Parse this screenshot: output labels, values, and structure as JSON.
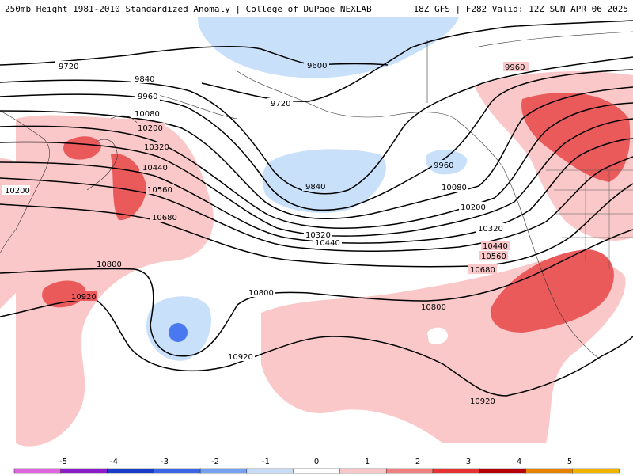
{
  "header": {
    "title": "250mb Height 1981-2010 Standardized Anomaly | College of DuPage NEXLAB",
    "run_info": "18Z GFS | F282 Valid: 12Z SUN APR 06 2025"
  },
  "contours": {
    "labels": [
      "9720",
      "9600",
      "9720",
      "9840",
      "9960",
      "10080",
      "10200",
      "10200",
      "10320",
      "10440",
      "10560",
      "10680",
      "10800",
      "10920",
      "9840",
      "9960",
      "10080",
      "10200",
      "10320",
      "10440",
      "10560",
      "10680",
      "10800",
      "10800",
      "10920",
      "10920",
      "9960",
      "10320",
      "10440"
    ]
  },
  "colorbar": {
    "ticks": [
      "-5",
      "-4",
      "-3",
      "-2",
      "-1",
      "0",
      "1",
      "2",
      "3",
      "4",
      "5"
    ],
    "colors": [
      "#e066e0",
      "#8a1ec8",
      "#1a3cc8",
      "#3c64e6",
      "#78a0f0",
      "#c8dcf8",
      "#ffffff",
      "#f8c8c8",
      "#f08080",
      "#e63232",
      "#b40000",
      "#e68200",
      "#f0b400"
    ]
  },
  "anomaly_colors": {
    "light_blue": "#c8e0fa",
    "blue": "#4a78f0",
    "light_red": "#fac8c8",
    "red": "#eb5a5a"
  }
}
